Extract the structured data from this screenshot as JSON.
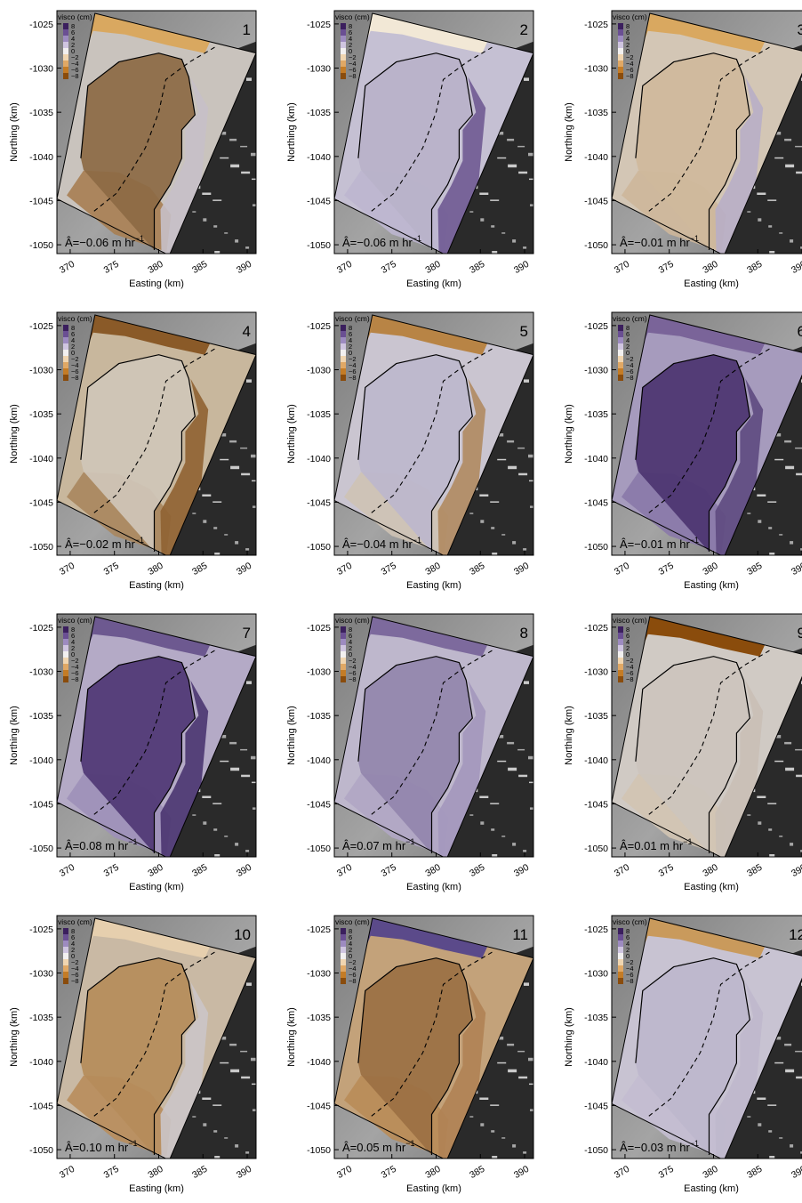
{
  "axes": {
    "xlabel": "Easting (km)",
    "ylabel": "Northing (km)",
    "xticks": [
      "370",
      "375",
      "380",
      "385",
      "390"
    ],
    "yticks": [
      "-1025",
      "-1030",
      "-1035",
      "-1040",
      "-1045",
      "-1050"
    ],
    "xlim": [
      368.5,
      391
    ],
    "ylim": [
      -1051,
      -1023.5
    ]
  },
  "colorbar": {
    "title": "visco (cm)",
    "ticks": [
      "8",
      "6",
      "4",
      "2",
      "0",
      "−2",
      "−4",
      "−6",
      "−8"
    ],
    "colors": [
      "#3b1f5e",
      "#6a4f93",
      "#9d8bc0",
      "#cfc5e0",
      "#f2f0f0",
      "#f0d5b0",
      "#e0a865",
      "#c47c26",
      "#8a4c0c"
    ]
  },
  "panels": [
    {
      "number": "1",
      "rate_label": "Â=−0.06 m hr",
      "rate_exp": "−1",
      "top_edge": "#d9a860",
      "ice_base": "#c9c3bd",
      "ice_lobe": "#8c6a44",
      "ice_south": "#a77e52",
      "ice_margin": "#c6c0c8"
    },
    {
      "number": "2",
      "rate_label": "Â=−0.06 m hr",
      "rate_exp": "−1",
      "top_edge": "#f2e8d6",
      "ice_base": "#c5c0d3",
      "ice_lobe": "#b8b2c9",
      "ice_south": "#bdb6cf",
      "ice_margin": "#6f5a92"
    },
    {
      "number": "3",
      "rate_label": "Â=−0.01 m hr",
      "rate_exp": "−1",
      "top_edge": "#d9a860",
      "ice_base": "#d3c6b5",
      "ice_lobe": "#cfb99c",
      "ice_south": "#cdb69a",
      "ice_margin": "#b8aec7"
    },
    {
      "number": "4",
      "rate_label": "Â=−0.02 m hr",
      "rate_exp": "−1",
      "top_edge": "#8a5a28",
      "ice_base": "#c8b79d",
      "ice_lobe": "#cfc6b9",
      "ice_south": "#a8865e",
      "ice_margin": "#8f6232"
    },
    {
      "number": "5",
      "rate_label": "Â=−0.04 m hr",
      "rate_exp": "−1",
      "top_edge": "#b88445",
      "ice_base": "#cac5d0",
      "ice_lobe": "#bdb7cc",
      "ice_south": "#cec2b4",
      "ice_margin": "#b08a60"
    },
    {
      "number": "6",
      "rate_label": "Â=−0.01 m hr",
      "rate_exp": "−1",
      "top_edge": "#7a6499",
      "ice_base": "#a69bbd",
      "ice_lobe": "#4c3470",
      "ice_south": "#8a79a8",
      "ice_margin": "#5e4a80"
    },
    {
      "number": "7",
      "rate_label": "Â=0.08 m hr",
      "rate_exp": "−1",
      "top_edge": "#6d5990",
      "ice_base": "#b4aac6",
      "ice_lobe": "#4f3774",
      "ice_south": "#9d90b8",
      "ice_margin": "#4a3570"
    },
    {
      "number": "8",
      "rate_label": "Â=0.07 m hr",
      "rate_exp": "−1",
      "top_edge": "#7d6a9d",
      "ice_base": "#beb7cc",
      "ice_lobe": "#9285ad",
      "ice_south": "#b0a6c4",
      "ice_margin": "#a397bc"
    },
    {
      "number": "9",
      "rate_label": "Â=0.01 m hr",
      "rate_exp": "−1",
      "top_edge": "#8a4c0c",
      "ice_base": "#d0cac4",
      "ice_lobe": "#ccc4bd",
      "ice_south": "#d2c4b2",
      "ice_margin": "#c9bfb6"
    },
    {
      "number": "10",
      "rate_label": "Â=0.10 m hr",
      "rate_exp": "−1",
      "top_edge": "#e6cfae",
      "ice_base": "#c9b9a4",
      "ice_lobe": "#b58c5a",
      "ice_south": "#b88d5c",
      "ice_margin": "#cbc5c8"
    },
    {
      "number": "11",
      "rate_label": "Â=0.05 m hr",
      "rate_exp": "−1",
      "top_edge": "#5b4a8a",
      "ice_base": "#c3a27a",
      "ice_lobe": "#9b7043",
      "ice_south": "#b98c58",
      "ice_margin": "#b08254"
    },
    {
      "number": "12",
      "rate_label": "Â=−0.03 m hr",
      "rate_exp": "−1",
      "top_edge": "#c99a5c",
      "ice_base": "#c8c3d2",
      "ice_lobe": "#bdb7cc",
      "ice_south": "#c3bdd0",
      "ice_margin": "#bfb8cc"
    }
  ]
}
